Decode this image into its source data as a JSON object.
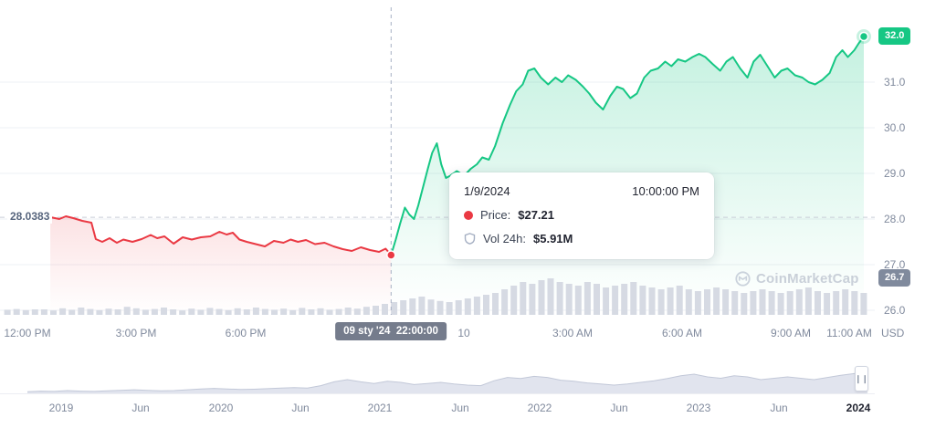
{
  "theme": {
    "green": "#16c784",
    "red": "#ea3943",
    "axis_text": "#808a9d",
    "dark_text": "#222531",
    "secondary_text": "#58667e",
    "crosshair_badge_bg": "#757c8c",
    "volume_bar": "#d6dae3",
    "navigator_fill": "#e1e4ee",
    "navigator_stroke": "#c2c8d8",
    "gridline": "#eef0f4"
  },
  "left_price_label": "28.0383",
  "current_price_badge": "32.0",
  "secondary_price_badge": "26.7",
  "currency_label": "USD",
  "watermark": "CoinMarketCap",
  "crosshair_badge": "09 sty '24  22:00:00",
  "tooltip": {
    "date": "1/9/2024",
    "time": "10:00:00 PM",
    "price_label": "Price:",
    "price_value": "$27.21",
    "vol_label": "Vol 24h:",
    "vol_value": "$5.91M"
  },
  "chart_data": {
    "type": "line",
    "title": "Crypto price chart, Jan 9-10 2024",
    "x_unit": "hours since 12:00 PM Jan 9 2024",
    "ylim": [
      25.9,
      32.3
    ],
    "reference_price": 28.0383,
    "hovered_point": {
      "t": 10.0,
      "price": 27.21,
      "date": "1/9/2024",
      "time": "10:00:00 PM",
      "vol_24h": "$5.91M"
    },
    "last_point": {
      "t": 23.0,
      "price": 32.0
    },
    "y_ticks": [
      {
        "label": "31.0",
        "value": 31.0
      },
      {
        "label": "30.0",
        "value": 30.0
      },
      {
        "label": "29.0",
        "value": 29.0
      },
      {
        "label": "28.0",
        "value": 28.0
      },
      {
        "label": "27.0",
        "value": 27.0
      },
      {
        "label": "26.0",
        "value": 26.0
      }
    ],
    "x_ticks": [
      {
        "label": "12:00 PM",
        "t": 0
      },
      {
        "label": "3:00 PM",
        "t": 3
      },
      {
        "label": "6:00 PM",
        "t": 6
      },
      {
        "label": "10",
        "t": 12
      },
      {
        "label": "3:00 AM",
        "t": 15
      },
      {
        "label": "6:00 AM",
        "t": 18
      },
      {
        "label": "9:00 AM",
        "t": 21
      },
      {
        "label": "11:00 AM",
        "t": 22.6
      }
    ],
    "series": [
      {
        "name": "price-declining",
        "trend": "down",
        "color": "#ea3943",
        "points": [
          [
            0.63,
            28.04
          ],
          [
            0.88,
            28.0
          ],
          [
            1.06,
            28.06
          ],
          [
            1.26,
            28.02
          ],
          [
            1.51,
            27.96
          ],
          [
            1.76,
            27.92
          ],
          [
            1.88,
            27.56
          ],
          [
            2.06,
            27.5
          ],
          [
            2.26,
            27.58
          ],
          [
            2.46,
            27.48
          ],
          [
            2.64,
            27.55
          ],
          [
            2.89,
            27.5
          ],
          [
            3.14,
            27.56
          ],
          [
            3.39,
            27.65
          ],
          [
            3.57,
            27.58
          ],
          [
            3.77,
            27.62
          ],
          [
            4.02,
            27.46
          ],
          [
            4.27,
            27.6
          ],
          [
            4.52,
            27.55
          ],
          [
            4.77,
            27.6
          ],
          [
            5.03,
            27.62
          ],
          [
            5.28,
            27.72
          ],
          [
            5.48,
            27.66
          ],
          [
            5.65,
            27.7
          ],
          [
            5.83,
            27.55
          ],
          [
            6.03,
            27.5
          ],
          [
            6.28,
            27.45
          ],
          [
            6.53,
            27.4
          ],
          [
            6.78,
            27.52
          ],
          [
            7.04,
            27.48
          ],
          [
            7.24,
            27.55
          ],
          [
            7.44,
            27.5
          ],
          [
            7.66,
            27.54
          ],
          [
            7.91,
            27.45
          ],
          [
            8.17,
            27.48
          ],
          [
            8.42,
            27.4
          ],
          [
            8.67,
            27.34
          ],
          [
            8.92,
            27.3
          ],
          [
            9.17,
            27.38
          ],
          [
            9.42,
            27.32
          ],
          [
            9.67,
            27.28
          ],
          [
            9.85,
            27.35
          ],
          [
            10.0,
            27.21
          ]
        ]
      },
      {
        "name": "price-rising",
        "trend": "up",
        "color": "#16c784",
        "points": [
          [
            10.0,
            27.21
          ],
          [
            10.13,
            27.55
          ],
          [
            10.25,
            27.9
          ],
          [
            10.38,
            28.25
          ],
          [
            10.5,
            28.1
          ],
          [
            10.63,
            28.0
          ],
          [
            10.75,
            28.3
          ],
          [
            10.88,
            28.7
          ],
          [
            11.01,
            29.1
          ],
          [
            11.13,
            29.45
          ],
          [
            11.26,
            29.66
          ],
          [
            11.38,
            29.2
          ],
          [
            11.51,
            28.9
          ],
          [
            11.63,
            28.95
          ],
          [
            11.81,
            29.05
          ],
          [
            12.01,
            28.95
          ],
          [
            12.19,
            29.1
          ],
          [
            12.36,
            29.2
          ],
          [
            12.51,
            29.35
          ],
          [
            12.69,
            29.3
          ],
          [
            12.86,
            29.6
          ],
          [
            13.07,
            30.1
          ],
          [
            13.27,
            30.5
          ],
          [
            13.44,
            30.8
          ],
          [
            13.62,
            30.95
          ],
          [
            13.77,
            31.25
          ],
          [
            13.94,
            31.3
          ],
          [
            14.12,
            31.1
          ],
          [
            14.32,
            30.95
          ],
          [
            14.52,
            31.1
          ],
          [
            14.7,
            31.0
          ],
          [
            14.87,
            31.15
          ],
          [
            15.08,
            31.05
          ],
          [
            15.28,
            30.9
          ],
          [
            15.45,
            30.75
          ],
          [
            15.63,
            30.55
          ],
          [
            15.83,
            30.4
          ],
          [
            16.03,
            30.7
          ],
          [
            16.21,
            30.9
          ],
          [
            16.38,
            30.85
          ],
          [
            16.58,
            30.65
          ],
          [
            16.76,
            30.75
          ],
          [
            16.96,
            31.1
          ],
          [
            17.14,
            31.25
          ],
          [
            17.34,
            31.3
          ],
          [
            17.54,
            31.45
          ],
          [
            17.71,
            31.35
          ],
          [
            17.89,
            31.5
          ],
          [
            18.09,
            31.45
          ],
          [
            18.29,
            31.55
          ],
          [
            18.47,
            31.62
          ],
          [
            18.64,
            31.55
          ],
          [
            18.84,
            31.4
          ],
          [
            19.05,
            31.25
          ],
          [
            19.22,
            31.45
          ],
          [
            19.4,
            31.55
          ],
          [
            19.6,
            31.3
          ],
          [
            19.8,
            31.1
          ],
          [
            19.97,
            31.45
          ],
          [
            20.15,
            31.6
          ],
          [
            20.35,
            31.35
          ],
          [
            20.55,
            31.1
          ],
          [
            20.73,
            31.25
          ],
          [
            20.9,
            31.3
          ],
          [
            21.11,
            31.15
          ],
          [
            21.31,
            31.1
          ],
          [
            21.48,
            31.0
          ],
          [
            21.66,
            30.95
          ],
          [
            21.86,
            31.05
          ],
          [
            22.06,
            31.2
          ],
          [
            22.24,
            31.55
          ],
          [
            22.41,
            31.7
          ],
          [
            22.56,
            31.55
          ],
          [
            22.74,
            31.7
          ],
          [
            22.86,
            31.85
          ],
          [
            23.0,
            32.0
          ]
        ]
      }
    ],
    "volume_profile": [
      0.14,
      0.16,
      0.13,
      0.15,
      0.15,
      0.12,
      0.18,
      0.14,
      0.2,
      0.16,
      0.13,
      0.17,
      0.15,
      0.22,
      0.18,
      0.14,
      0.16,
      0.2,
      0.15,
      0.12,
      0.17,
      0.14,
      0.19,
      0.16,
      0.13,
      0.18,
      0.15,
      0.2,
      0.16,
      0.14,
      0.17,
      0.13,
      0.19,
      0.15,
      0.18,
      0.14,
      0.16,
      0.2,
      0.17,
      0.22,
      0.25,
      0.3,
      0.35,
      0.4,
      0.45,
      0.5,
      0.42,
      0.38,
      0.35,
      0.4,
      0.45,
      0.5,
      0.55,
      0.6,
      0.7,
      0.8,
      0.9,
      0.85,
      0.95,
      1.0,
      0.9,
      0.85,
      0.8,
      0.9,
      0.85,
      0.75,
      0.8,
      0.85,
      0.9,
      0.8,
      0.75,
      0.7,
      0.75,
      0.8,
      0.7,
      0.65,
      0.7,
      0.75,
      0.7,
      0.65,
      0.6,
      0.65,
      0.7,
      0.65,
      0.6,
      0.65,
      0.7,
      0.75,
      0.65,
      0.6,
      0.65,
      0.7,
      0.65,
      0.6
    ],
    "navigator": {
      "labels": [
        "2019",
        "Jun",
        "2020",
        "Jun",
        "2021",
        "Jun",
        "2022",
        "Jun",
        "2023",
        "Jun",
        "2024"
      ],
      "profile": [
        0.06,
        0.08,
        0.07,
        0.1,
        0.08,
        0.07,
        0.09,
        0.11,
        0.13,
        0.11,
        0.09,
        0.1,
        0.13,
        0.16,
        0.18,
        0.16,
        0.14,
        0.15,
        0.17,
        0.19,
        0.21,
        0.19,
        0.28,
        0.42,
        0.5,
        0.42,
        0.36,
        0.44,
        0.4,
        0.32,
        0.36,
        0.4,
        0.34,
        0.3,
        0.28,
        0.46,
        0.58,
        0.54,
        0.62,
        0.58,
        0.48,
        0.44,
        0.38,
        0.34,
        0.3,
        0.34,
        0.4,
        0.46,
        0.54,
        0.64,
        0.7,
        0.6,
        0.55,
        0.64,
        0.6,
        0.5,
        0.55,
        0.6,
        0.55,
        0.5,
        0.58,
        0.66,
        0.72,
        0.78
      ]
    }
  }
}
